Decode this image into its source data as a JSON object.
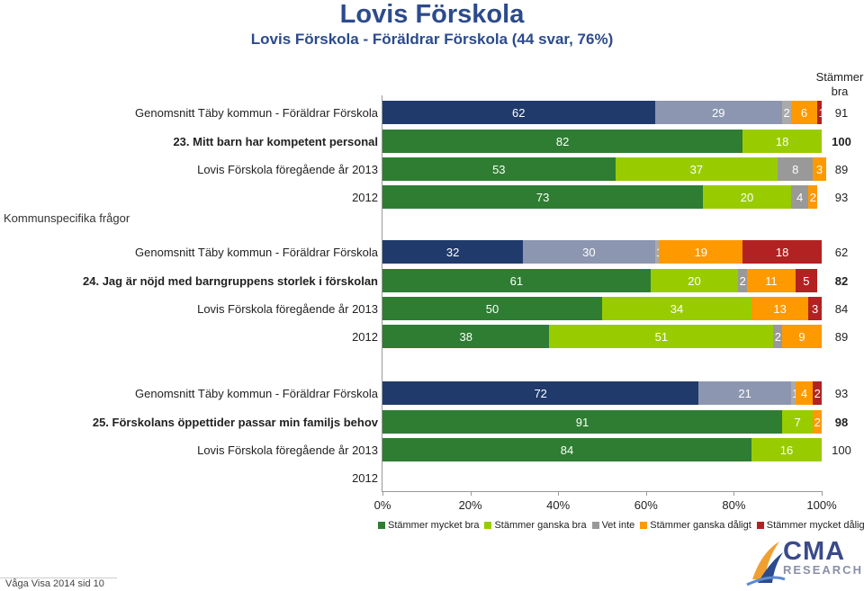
{
  "header": {
    "title": "Lovis Förskola",
    "subtitle": "Lovis Förskola - Föräldrar Förskola (44 svar, 76%)"
  },
  "column_header": "Stämmer bra",
  "side_label": "Kommunspecifika frågor",
  "footer": "Våga Visa 2014 sid 10",
  "logo": {
    "name": "CMA",
    "sub": "RESEARCH"
  },
  "chart_data": {
    "type": "bar",
    "orientation": "horizontal-stacked-percent",
    "xlim": [
      0,
      100
    ],
    "x_ticks": [
      "0%",
      "20%",
      "40%",
      "60%",
      "80%",
      "100%"
    ],
    "legend_position": "bottom",
    "series": [
      {
        "name": "Stämmer mycket bra",
        "color": "#2e7d32"
      },
      {
        "name": "Stämmer ganska bra",
        "color": "#99cc00"
      },
      {
        "name": "Vet inte",
        "color": "#999999"
      },
      {
        "name": "Stämmer ganska dåligt",
        "color": "#ff9900"
      },
      {
        "name": "Stämmer mycket dåligt",
        "color": "#b22222"
      }
    ],
    "rows": [
      {
        "label": "Genomsnitt Täby kommun - Föräldrar Förskola",
        "kind": "avg",
        "values": [
          62,
          29,
          2,
          6,
          1
        ],
        "total": "91"
      },
      {
        "label": "23. Mitt barn har kompetent personal",
        "kind": "question",
        "values": [
          82,
          18,
          0,
          0,
          0
        ],
        "total": "100"
      },
      {
        "label": "Lovis Förskola föregående år 2013",
        "kind": "prev",
        "values": [
          53,
          37,
          8,
          3,
          0
        ],
        "total": "89"
      },
      {
        "label": "2012",
        "kind": "prev",
        "values": [
          73,
          20,
          4,
          2,
          0
        ],
        "total": "93"
      },
      {
        "label": "Genomsnitt Täby kommun - Föräldrar Förskola",
        "kind": "avg",
        "values": [
          32,
          30,
          1,
          19,
          18
        ],
        "total": "62"
      },
      {
        "label": "24. Jag är nöjd med barngruppens storlek i förskolan",
        "kind": "question",
        "values": [
          61,
          20,
          2,
          11,
          5
        ],
        "total": "82"
      },
      {
        "label": "Lovis Förskola föregående år 2013",
        "kind": "prev",
        "values": [
          50,
          34,
          0,
          13,
          3
        ],
        "total": "84"
      },
      {
        "label": "2012",
        "kind": "prev",
        "values": [
          38,
          51,
          2,
          9,
          0
        ],
        "total": "89"
      },
      {
        "label": "Genomsnitt Täby kommun - Föräldrar Förskola",
        "kind": "avg",
        "values": [
          72,
          21,
          1,
          4,
          2
        ],
        "total": "93"
      },
      {
        "label": "25. Förskolans öppettider passar min familjs behov",
        "kind": "question",
        "values": [
          91,
          7,
          0,
          2,
          0
        ],
        "total": "98"
      },
      {
        "label": "Lovis Förskola föregående år 2013",
        "kind": "prev",
        "values": [
          84,
          16,
          0,
          0,
          0
        ],
        "total": "100"
      },
      {
        "label": "2012",
        "kind": "prev",
        "values": [],
        "total": ""
      }
    ]
  }
}
